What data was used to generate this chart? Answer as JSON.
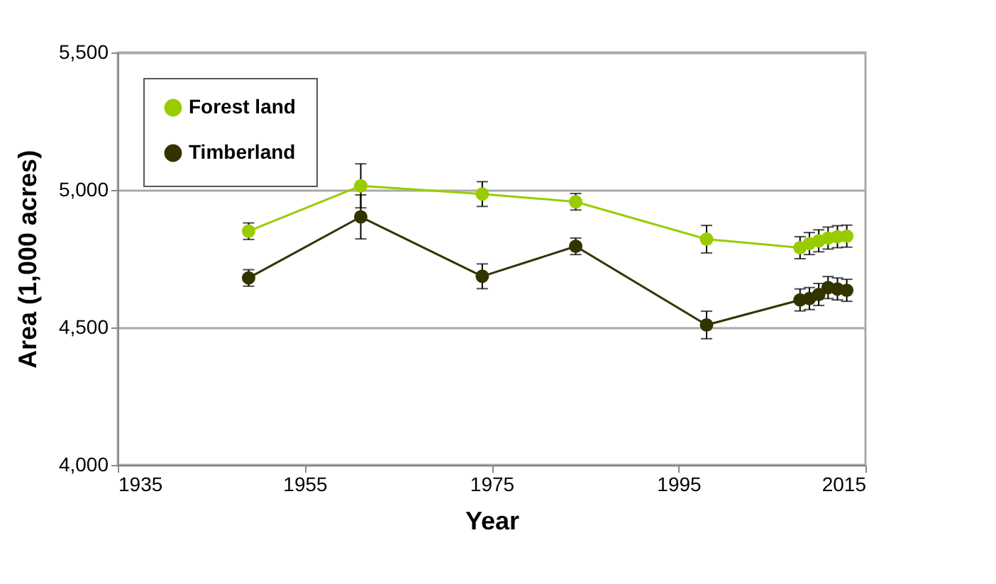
{
  "chart_data": {
    "type": "line",
    "xlabel": "Year",
    "ylabel": "Area (1,000 acres)",
    "xlim": [
      1935,
      2015
    ],
    "xticks": [
      1935,
      1955,
      1975,
      1995,
      2015
    ],
    "ylim": [
      4000,
      5500
    ],
    "yticks": [
      {
        "value": 4000,
        "label": "4,000"
      },
      {
        "value": 4500,
        "label": "4,500"
      },
      {
        "value": 5000,
        "label": "5,000"
      },
      {
        "value": 5500,
        "label": "5,500"
      }
    ],
    "x": [
      1949,
      1961,
      1974,
      1984,
      1998,
      2008,
      2009,
      2010,
      2011,
      2012,
      2013
    ],
    "series": [
      {
        "name": "Forest land",
        "color": "#99cc00",
        "values": [
          4850,
          5015,
          4985,
          4957,
          4821,
          4790,
          4805,
          4815,
          4825,
          4830,
          4832
        ],
        "errors": [
          30,
          80,
          45,
          30,
          50,
          40,
          40,
          40,
          40,
          40,
          40
        ]
      },
      {
        "name": "Timberland",
        "color": "#333300",
        "values": [
          4680,
          4902,
          4686,
          4795,
          4509,
          4600,
          4605,
          4620,
          4645,
          4640,
          4635
        ],
        "errors": [
          30,
          80,
          45,
          30,
          50,
          40,
          40,
          40,
          40,
          40,
          40
        ]
      }
    ],
    "marker": "circle",
    "grid": "y",
    "legend": "top left"
  }
}
